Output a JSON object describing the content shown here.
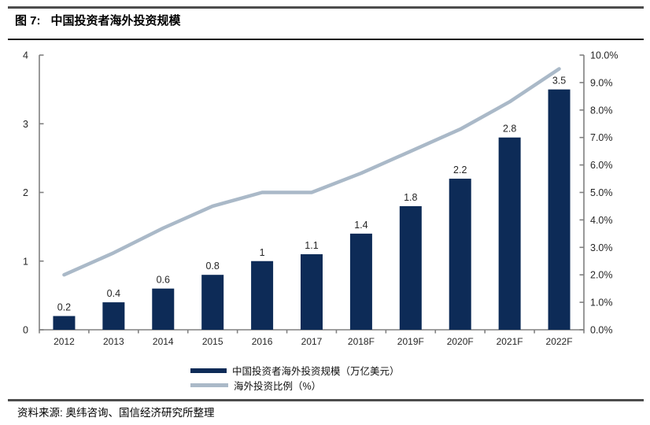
{
  "header": {
    "title_prefix": "图 7:",
    "title_text": "中国投资者海外投资规模"
  },
  "source_note": "资料来源: 奥纬咨询、国信经济研究所整理",
  "colors": {
    "bar": "#0d2b57",
    "line": "#aab9c8",
    "axis": "#808080",
    "label": "#262626",
    "callout": "#000000"
  },
  "chart_data": {
    "type": "bar+line",
    "title": "图 7: 中国投资者海外投资规模",
    "categories": [
      "2012",
      "2013",
      "2014",
      "2015",
      "2016",
      "2017",
      "2018F",
      "2019F",
      "2020F",
      "2021F",
      "2022F"
    ],
    "series": [
      {
        "name": "中国投资者海外投资规模（万亿美元）",
        "chart": "bar",
        "axis": "left",
        "color": "#0d2b57",
        "values": [
          0.2,
          0.4,
          0.6,
          0.8,
          1,
          1.1,
          1.4,
          1.8,
          2.2,
          2.8,
          3.5
        ],
        "labels": [
          "0.2",
          "0.4",
          "0.6",
          "0.8",
          "1",
          "1.1",
          "1.4",
          "1.8",
          "2.2",
          "2.8",
          "3.5"
        ]
      },
      {
        "name": "海外投资比例（%）",
        "chart": "line",
        "axis": "right",
        "color": "#aab9c8",
        "values": [
          2.0,
          2.8,
          3.7,
          4.5,
          5.0,
          5.0,
          5.7,
          6.5,
          7.3,
          8.3,
          9.5
        ],
        "labels": [
          "2.0%",
          "2.8%",
          "3.7%",
          "4.5%",
          "5.0%",
          "5.0%",
          "5.7%",
          "6.5%",
          "7.3%",
          "8.3%",
          "9.5%"
        ]
      }
    ],
    "left_axis": {
      "min": 0,
      "max": 4,
      "ticks": [
        "0",
        "1",
        "2",
        "3",
        "4"
      ]
    },
    "right_axis": {
      "min": 0,
      "max": 10,
      "ticks": [
        "0.0%",
        "1.0%",
        "2.0%",
        "3.0%",
        "4.0%",
        "5.0%",
        "6.0%",
        "7.0%",
        "8.0%",
        "9.0%",
        "10.0%"
      ]
    },
    "legend_position": "bottom",
    "grid": false,
    "callout_label_indices": [
      0,
      1
    ]
  }
}
